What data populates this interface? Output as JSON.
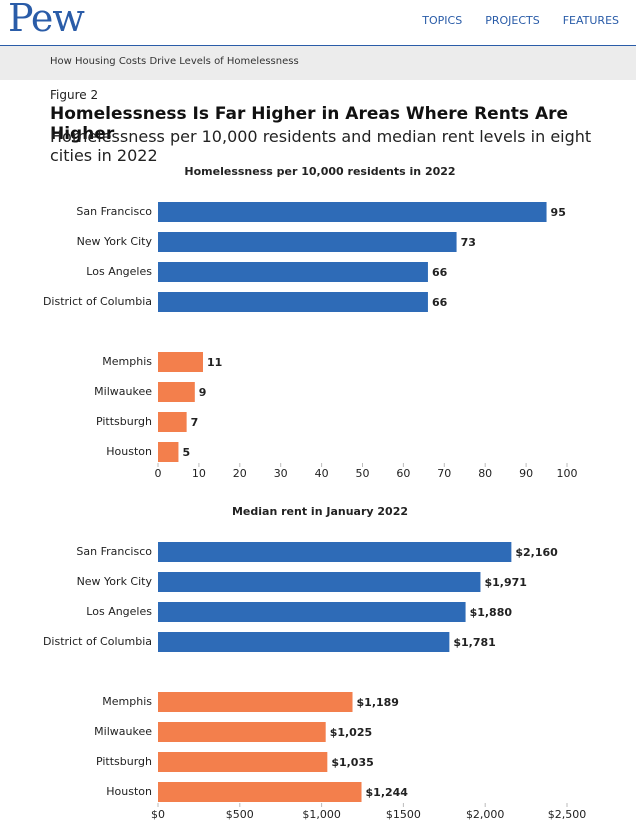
{
  "header": {
    "logo": "Pew",
    "nav": [
      "TOPICS",
      "PROJECTS",
      "FEATURES"
    ],
    "breadcrumb": "How Housing Costs Drive Levels of Homelessness"
  },
  "figure": {
    "label": "Figure 2",
    "title": "Homelessness Is Far Higher in Areas Where Rents Are Higher",
    "subtitle": "Homelessness per 10,000 residents and median rent levels in eight cities in 2022"
  },
  "chart_data": [
    {
      "type": "bar",
      "orientation": "horizontal",
      "title": "Homelessness per 10,000 residents in 2022",
      "categories": [
        "San Francisco",
        "New York City",
        "Los Angeles",
        "District of Columbia",
        "Memphis",
        "Milwaukee",
        "Pittsburgh",
        "Houston"
      ],
      "values": [
        95,
        73,
        66,
        66,
        11,
        9,
        7,
        5
      ],
      "colors": [
        "#2e6bb7",
        "#2e6bb7",
        "#2e6bb7",
        "#2e6bb7",
        "#f37f4c",
        "#f37f4c",
        "#f37f4c",
        "#f37f4c"
      ],
      "xlim": [
        0,
        100
      ],
      "xticks": [
        0,
        10,
        20,
        30,
        40,
        50,
        60,
        70,
        80,
        90,
        100
      ]
    },
    {
      "type": "bar",
      "orientation": "horizontal",
      "title": "Median rent in January 2022",
      "categories": [
        "San Francisco",
        "New York City",
        "Los Angeles",
        "District of Columbia",
        "Memphis",
        "Milwaukee",
        "Pittsburgh",
        "Houston"
      ],
      "values": [
        2160,
        1971,
        1880,
        1781,
        1189,
        1025,
        1035,
        1244
      ],
      "value_labels": [
        "$2,160",
        "$1,971",
        "$1,880",
        "$1,781",
        "$1,189",
        "$1,025",
        "$1,035",
        "$1,244"
      ],
      "colors": [
        "#2e6bb7",
        "#2e6bb7",
        "#2e6bb7",
        "#2e6bb7",
        "#f37f4c",
        "#f37f4c",
        "#f37f4c",
        "#f37f4c"
      ],
      "xlim": [
        0,
        2500
      ],
      "xticks": [
        {
          "value": 0,
          "label": "$0"
        },
        {
          "value": 500,
          "label": "$500"
        },
        {
          "value": 1000,
          "label": "$1,000"
        },
        {
          "value": 1500,
          "label": "$1500"
        },
        {
          "value": 2000,
          "label": "$2,000"
        },
        {
          "value": 2500,
          "label": "$2,500"
        }
      ]
    }
  ]
}
